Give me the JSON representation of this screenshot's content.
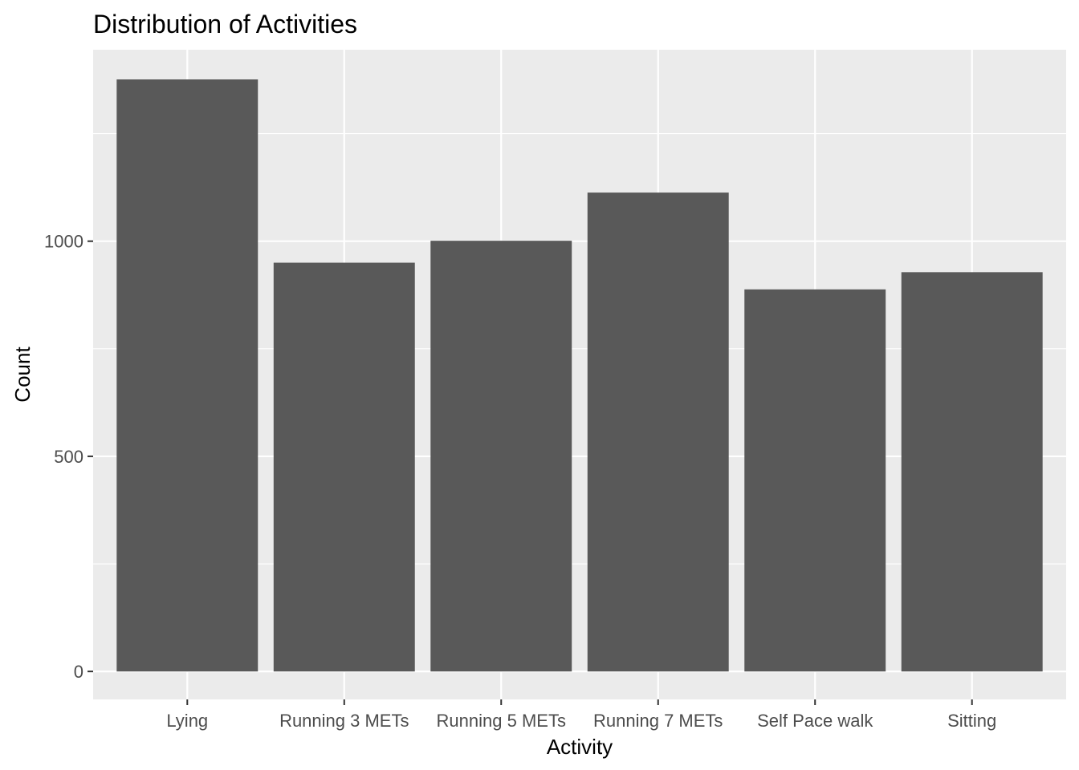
{
  "chart_data": {
    "type": "bar",
    "title": "Distribution of Activities",
    "xlabel": "Activity",
    "ylabel": "Count",
    "categories": [
      "Lying",
      "Running 3 METs",
      "Running 5 METs",
      "Running 7 METs",
      "Self Pace walk",
      "Sitting"
    ],
    "values": [
      1376,
      950,
      1001,
      1113,
      888,
      928
    ],
    "ylim": [
      -65,
      1445
    ],
    "yticks": [
      0,
      500,
      1000
    ],
    "grid": true,
    "colors": {
      "panel": "#ebebeb",
      "bar": "#595959",
      "grid": "#ffffff",
      "tick": "#333333"
    }
  }
}
